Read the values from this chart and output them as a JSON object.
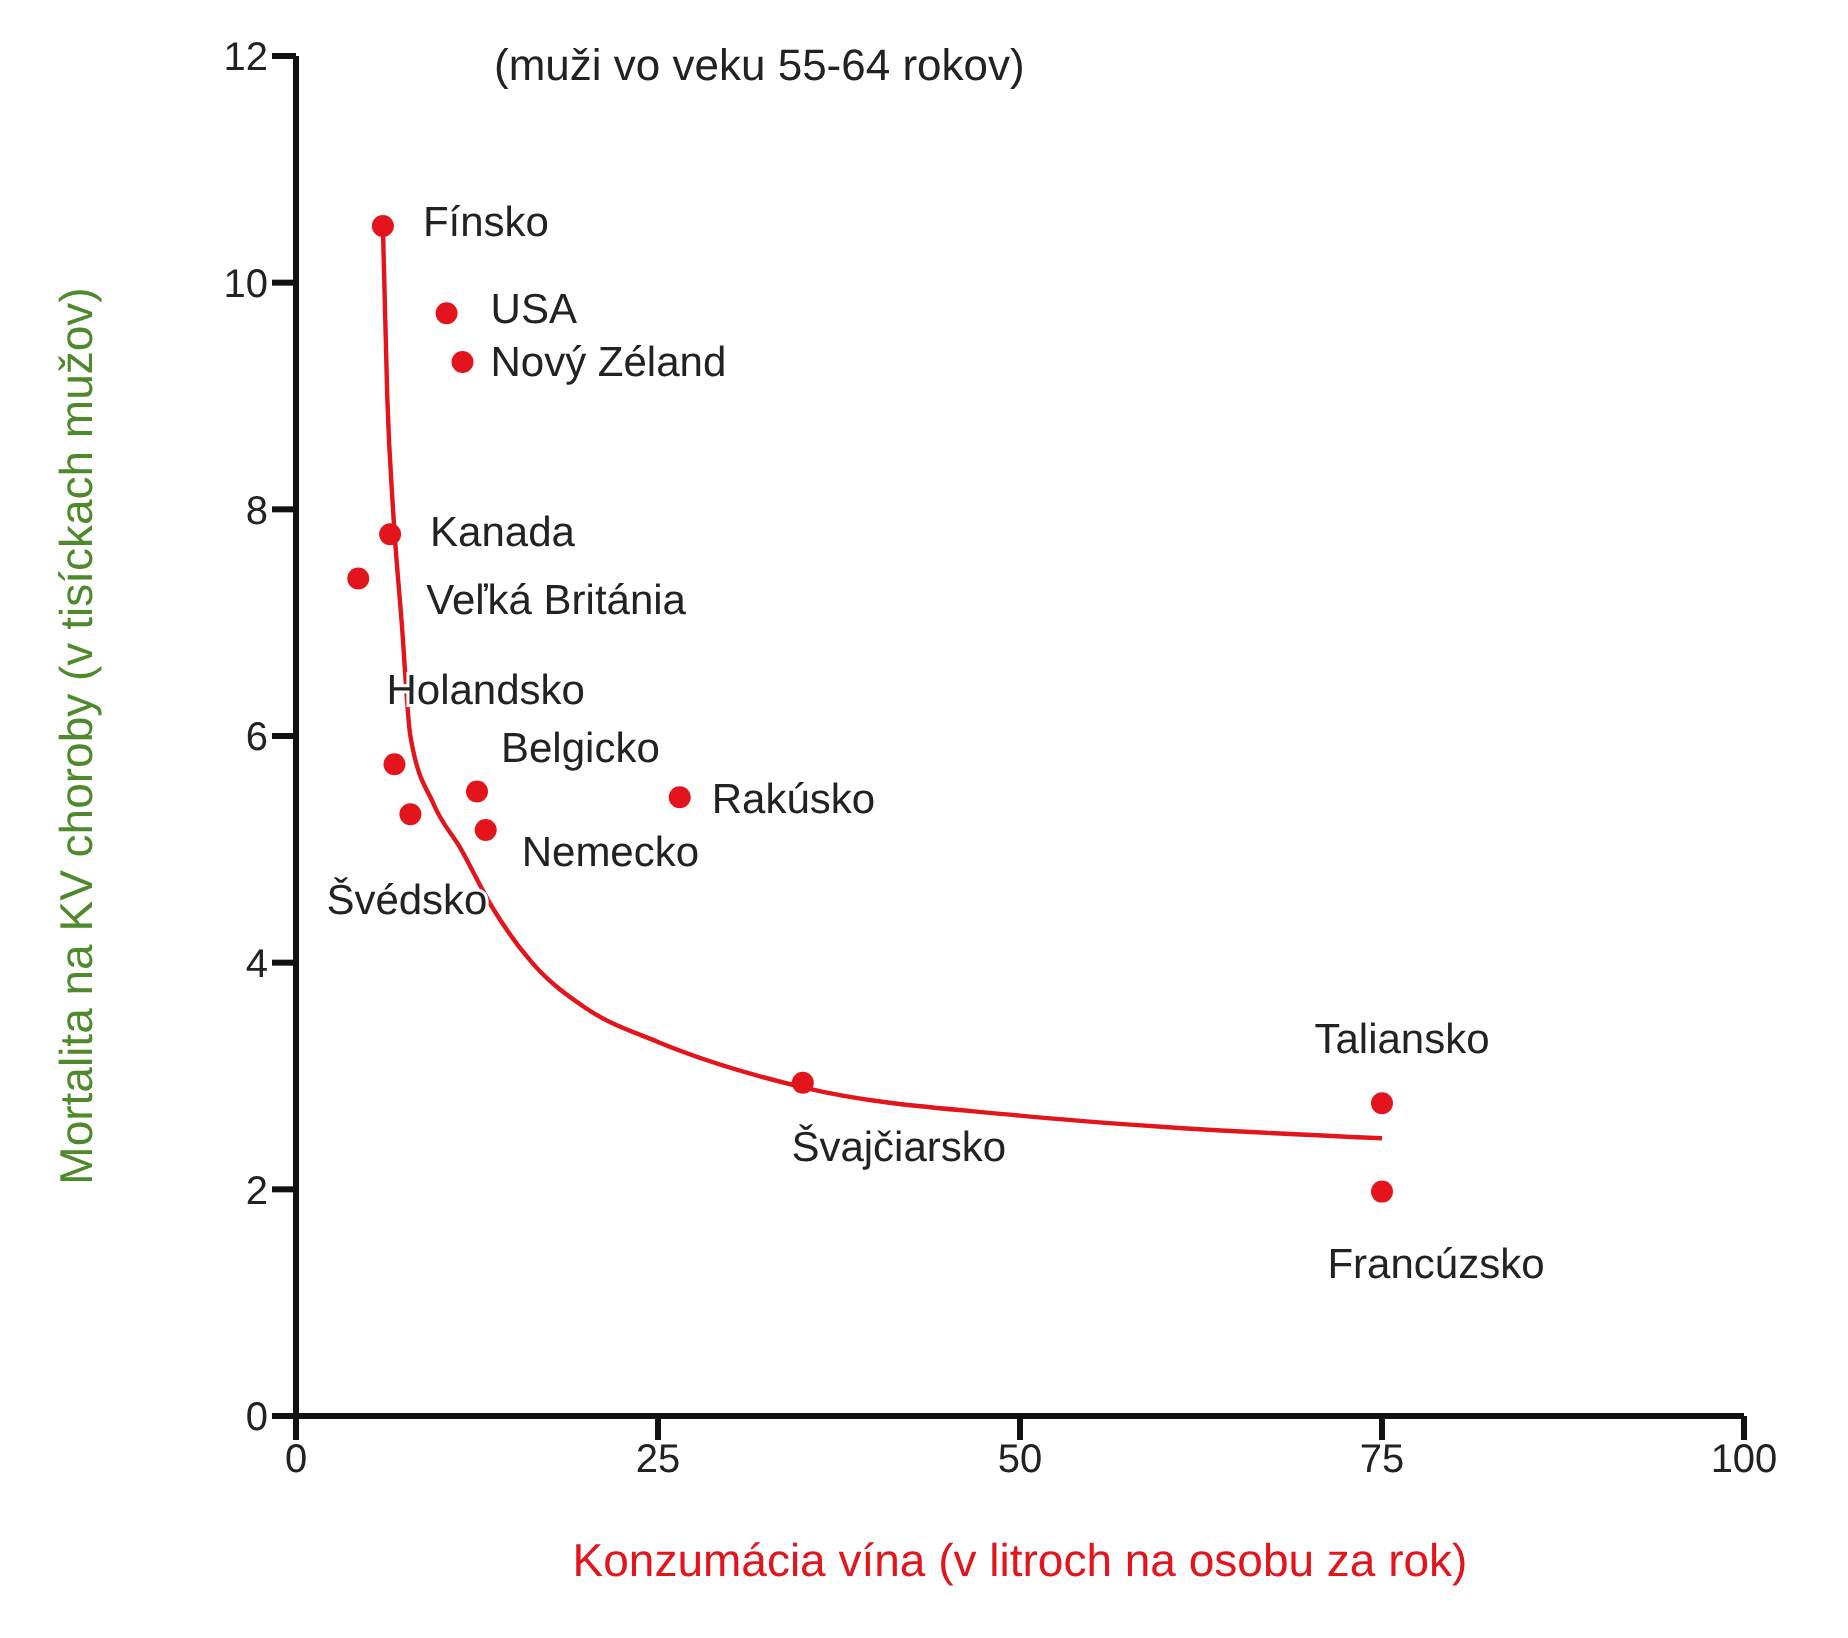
{
  "chart_data": {
    "type": "scatter",
    "title": "(muži vo veku 55-64 rokov)",
    "xlabel": "Konzumácia vína (v litroch na osobu za rok)",
    "ylabel": "Mortalita na KV choroby (v tisíckach mužov)",
    "series": [
      {
        "marker": "circle",
        "color": "#e3141b",
        "x": [
          6.0,
          10.4,
          11.5,
          6.5,
          4.3,
          6.8,
          7.9,
          12.5,
          13.1,
          26.5,
          35,
          75,
          75
        ],
        "values": [
          10.5,
          9.73,
          9.3,
          7.78,
          7.39,
          5.75,
          5.31,
          5.51,
          5.17,
          5.46,
          2.94,
          2.76,
          1.98
        ]
      },
      {
        "type": "line",
        "marker": "none",
        "color": "#e3141b",
        "x": [
          6.0,
          6.3,
          6.7,
          7.3,
          7.9,
          9.5,
          11.4,
          13.5,
          16.3,
          20,
          25,
          35,
          50,
          60,
          75
        ],
        "values": [
          10.5,
          9.0,
          8.0,
          7.0,
          6.0,
          5.4,
          5.0,
          4.5,
          4.0,
          3.6,
          3.3,
          2.9,
          2.65,
          2.55,
          2.45
        ]
      }
    ],
    "annotations": [
      {
        "text": "Fínsko",
        "x": 6.0,
        "y": 10.5
      },
      {
        "text": "USA",
        "x": 10.4,
        "y": 9.73
      },
      {
        "text": "Nový Zéland",
        "x": 11.5,
        "y": 9.3
      },
      {
        "text": "Kanada",
        "x": 6.5,
        "y": 7.78
      },
      {
        "text": "Veľká Británia",
        "x": 4.3,
        "y": 7.39
      },
      {
        "text": "Holandsko",
        "x": 6.8,
        "y": 5.75
      },
      {
        "text": "Švédsko",
        "x": 7.9,
        "y": 5.31
      },
      {
        "text": "Belgicko",
        "x": 12.5,
        "y": 5.51
      },
      {
        "text": "Nemecko",
        "x": 13.1,
        "y": 5.17
      },
      {
        "text": "Rakúsko",
        "x": 26.5,
        "y": 5.46
      },
      {
        "text": "Švajčiarsko",
        "x": 35,
        "y": 2.94
      },
      {
        "text": "Taliansko",
        "x": 75,
        "y": 2.76
      },
      {
        "text": "Francúzsko",
        "x": 75,
        "y": 1.98
      }
    ],
    "xlim": [
      0,
      100
    ],
    "xticks": [
      0,
      25,
      50,
      75,
      100
    ],
    "ylim": [
      0,
      12
    ],
    "yticks": [
      0,
      2,
      4,
      6,
      8,
      10,
      12
    ],
    "grid": false,
    "legend": false,
    "line_style": "solid"
  }
}
